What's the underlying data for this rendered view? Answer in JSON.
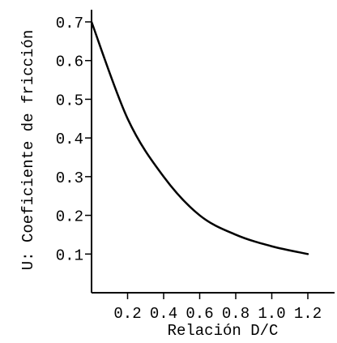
{
  "chart_data": {
    "type": "line",
    "xlabel": "Relación D/C",
    "ylabel": "U: Coeficiente de fricción",
    "xlim": [
      0,
      1.3
    ],
    "ylim": [
      0,
      0.7
    ],
    "x_ticks": [
      "0.2",
      "0.4",
      "0.6",
      "0.8",
      "1.0",
      "1.2"
    ],
    "y_ticks": [
      "0.1",
      "0.2",
      "0.3",
      "0.4",
      "0.5",
      "0.6",
      "0.7"
    ],
    "grid": false,
    "series": [
      {
        "x": [
          0.0,
          0.2,
          0.4,
          0.6,
          0.8,
          1.0,
          1.2
        ],
        "values": [
          0.7,
          0.45,
          0.3,
          0.2,
          0.15,
          0.12,
          0.1
        ]
      }
    ],
    "colors": {
      "line": "#000000",
      "axis": "#000000"
    }
  }
}
